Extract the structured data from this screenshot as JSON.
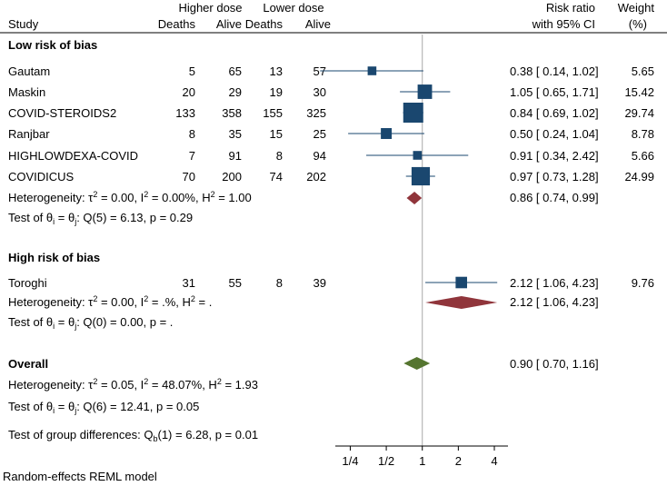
{
  "chart_data": {
    "type": "forest",
    "headers": {
      "study": "Study",
      "higher_dose": "Higher dose",
      "lower_dose": "Lower dose",
      "deaths": "Deaths",
      "alive": "Alive",
      "rr_line1": "Risk ratio",
      "rr_line2": "with 95% CI",
      "weight_line1": "Weight",
      "weight_line2": "(%)"
    },
    "groups": [
      {
        "title": "Low risk of bias",
        "studies": [
          {
            "name": "Gautam",
            "hd_deaths": "5",
            "hd_alive": "65",
            "ld_deaths": "13",
            "ld_alive": "57",
            "ci_text": "0.38 [ 0.14, 1.02]",
            "weight": "5.65",
            "rr": 0.38,
            "lo": 0.14,
            "hi": 1.02,
            "w": 5.65
          },
          {
            "name": "Maskin",
            "hd_deaths": "20",
            "hd_alive": "29",
            "ld_deaths": "19",
            "ld_alive": "30",
            "ci_text": "1.05 [ 0.65, 1.71]",
            "weight": "15.42",
            "rr": 1.05,
            "lo": 0.65,
            "hi": 1.71,
            "w": 15.42
          },
          {
            "name": "COVID-STEROIDS2",
            "hd_deaths": "133",
            "hd_alive": "358",
            "ld_deaths": "155",
            "ld_alive": "325",
            "ci_text": "0.84 [ 0.69, 1.02]",
            "weight": "29.74",
            "rr": 0.84,
            "lo": 0.69,
            "hi": 1.02,
            "w": 29.74
          },
          {
            "name": "Ranjbar",
            "hd_deaths": "8",
            "hd_alive": "35",
            "ld_deaths": "15",
            "ld_alive": "25",
            "ci_text": "0.50 [ 0.24, 1.04]",
            "weight": "8.78",
            "rr": 0.5,
            "lo": 0.24,
            "hi": 1.04,
            "w": 8.78
          },
          {
            "name": "HIGHLOWDEXA-COVID",
            "hd_deaths": "7",
            "hd_alive": "91",
            "ld_deaths": "8",
            "ld_alive": "94",
            "ci_text": "0.91 [ 0.34, 2.42]",
            "weight": "5.66",
            "rr": 0.91,
            "lo": 0.34,
            "hi": 2.42,
            "w": 5.66
          },
          {
            "name": "COVIDICUS",
            "hd_deaths": "70",
            "hd_alive": "200",
            "ld_deaths": "74",
            "ld_alive": "202",
            "ci_text": "0.97 [ 0.73, 1.28]",
            "weight": "24.99",
            "rr": 0.97,
            "lo": 0.73,
            "hi": 1.28,
            "w": 24.99
          }
        ],
        "summary": {
          "rr": 0.86,
          "lo": 0.74,
          "hi": 0.99,
          "ci_text": "0.86 [ 0.74, 0.99]"
        },
        "heterogeneity": {
          "prefix": "Heterogeneity: τ",
          "tau2": " = 0.00, I",
          "i2": " = 0.00%, H",
          "h2": " = 1.00"
        },
        "test": {
          "prefix": "Test of θ",
          "mid": " = θ",
          "rest": ": Q(5) = 6.13, p = 0.29"
        }
      },
      {
        "title": "High risk of bias",
        "studies": [
          {
            "name": "Toroghi",
            "hd_deaths": "31",
            "hd_alive": "55",
            "ld_deaths": "8",
            "ld_alive": "39",
            "ci_text": "2.12 [ 1.06, 4.23]",
            "weight": "9.76",
            "rr": 2.12,
            "lo": 1.06,
            "hi": 4.23,
            "w": 9.76
          }
        ],
        "summary": {
          "rr": 2.12,
          "lo": 1.06,
          "hi": 4.23,
          "ci_text": "2.12 [ 1.06, 4.23]"
        },
        "heterogeneity": {
          "prefix": "Heterogeneity: τ",
          "tau2": " = 0.00, I",
          "i2": " = .%, H",
          "h2": " = ."
        },
        "test": {
          "prefix": "Test of θ",
          "mid": " = θ",
          "rest": ": Q(0) = 0.00, p = ."
        }
      }
    ],
    "overall": {
      "title": "Overall",
      "rr": 0.9,
      "lo": 0.7,
      "hi": 1.16,
      "ci_text": "0.90 [ 0.70, 1.16]",
      "heterogeneity": {
        "prefix": "Heterogeneity: τ",
        "tau2": " = 0.05, I",
        "i2": " = 48.07%, H",
        "h2": " = 1.93"
      },
      "test": {
        "prefix": "Test of θ",
        "mid": " = θ",
        "rest": ": Q(6) = 12.41, p = 0.05"
      }
    },
    "group_test": {
      "prefix": "Test of group differences: Q",
      "sub": "b",
      "rest": "(1) = 6.28, p = 0.01"
    },
    "superscript_2": "2",
    "subscript_i": "i",
    "subscript_j": "j",
    "x_axis": {
      "scale": "log2",
      "range": [
        0.1875,
        5.2
      ],
      "ticks": [
        0.25,
        0.5,
        1,
        2,
        4
      ],
      "tick_labels": [
        "1/4",
        "1/2",
        "1",
        "2",
        "4"
      ],
      "null_line": 1
    },
    "footnote": "Random-effects REML model",
    "colors": {
      "study_marker": "#1a476f",
      "subgroup_diamond": "#90353b",
      "overall_diamond": "#55752f",
      "null_line": "#a8a8a8",
      "axis": "#000000"
    }
  }
}
